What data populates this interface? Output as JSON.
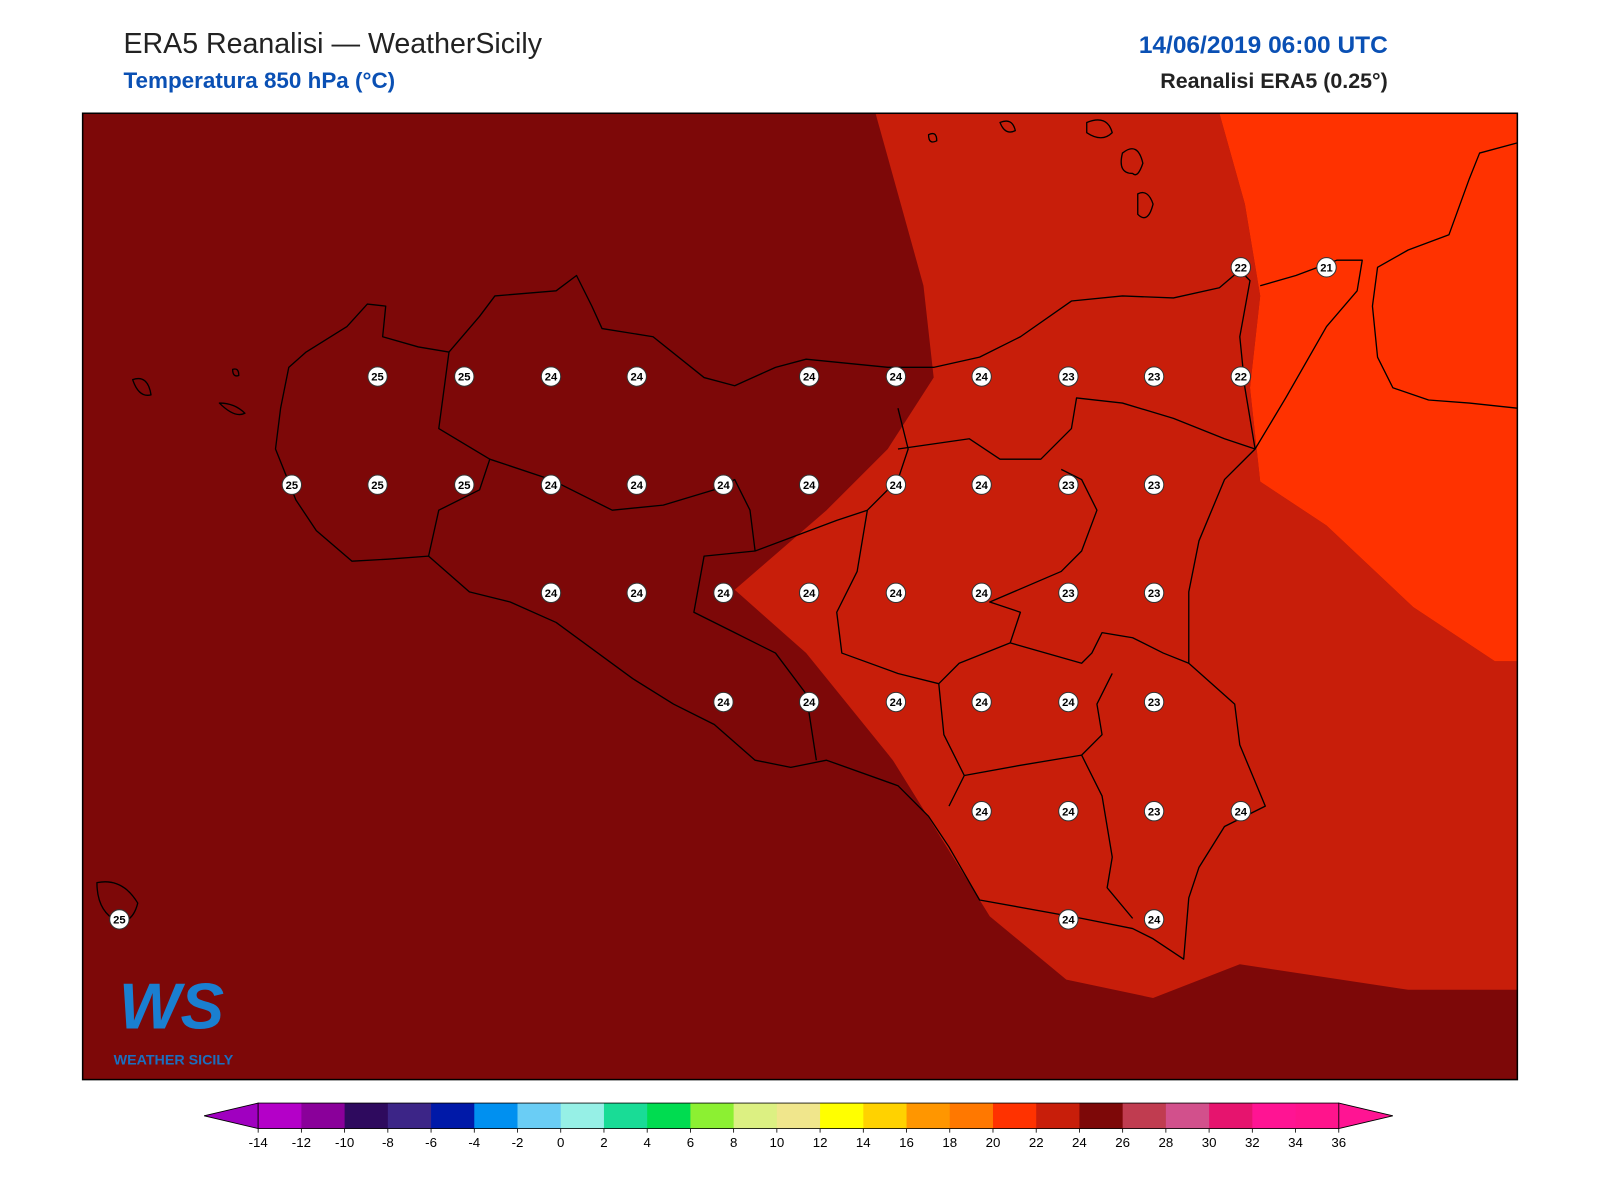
{
  "header": {
    "title": "ERA5 Reanalisi — WeatherSicily",
    "subtitle": "Temperatura 850 hPa (°C)",
    "datetime": "14/06/2019 06:00 UTC",
    "source": "Reanalisi ERA5 (0.25°)"
  },
  "map": {
    "stations": [
      22,
      21,
      25,
      25,
      24,
      24,
      24,
      24,
      24,
      23,
      23,
      22,
      25,
      25,
      25,
      24,
      24,
      24,
      24,
      24,
      24,
      23,
      23,
      24,
      24,
      24,
      24,
      24,
      24,
      23,
      23,
      24,
      24,
      24,
      24,
      24,
      23,
      24,
      24,
      23,
      24,
      25,
      24,
      24
    ]
  },
  "logo": {
    "mark": "WS",
    "text": "WEATHER SICILY"
  },
  "colorbar": {
    "ticks": [
      -14,
      -12,
      -10,
      -8,
      -6,
      -4,
      -2,
      0,
      2,
      4,
      6,
      8,
      10,
      12,
      14,
      16,
      18,
      20,
      22,
      24,
      26,
      28,
      30,
      32,
      34,
      36
    ],
    "colors": [
      "#b400c8",
      "#8a009a",
      "#2e0a5e",
      "#3c2587",
      "#0019a8",
      "#0090f0",
      "#6acdf5",
      "#96f0e6",
      "#19dc96",
      "#00dc50",
      "#8cf032",
      "#dcf082",
      "#f0e68c",
      "#ffff00",
      "#ffd200",
      "#ff9600",
      "#ff7800",
      "#ff3200",
      "#c81e0a",
      "#7d0808",
      "#c03c50",
      "#d2508c",
      "#e6146e",
      "#ff1493",
      "#ff148c"
    ],
    "under_color": "#a000c0",
    "over_color": "#ff1493"
  }
}
